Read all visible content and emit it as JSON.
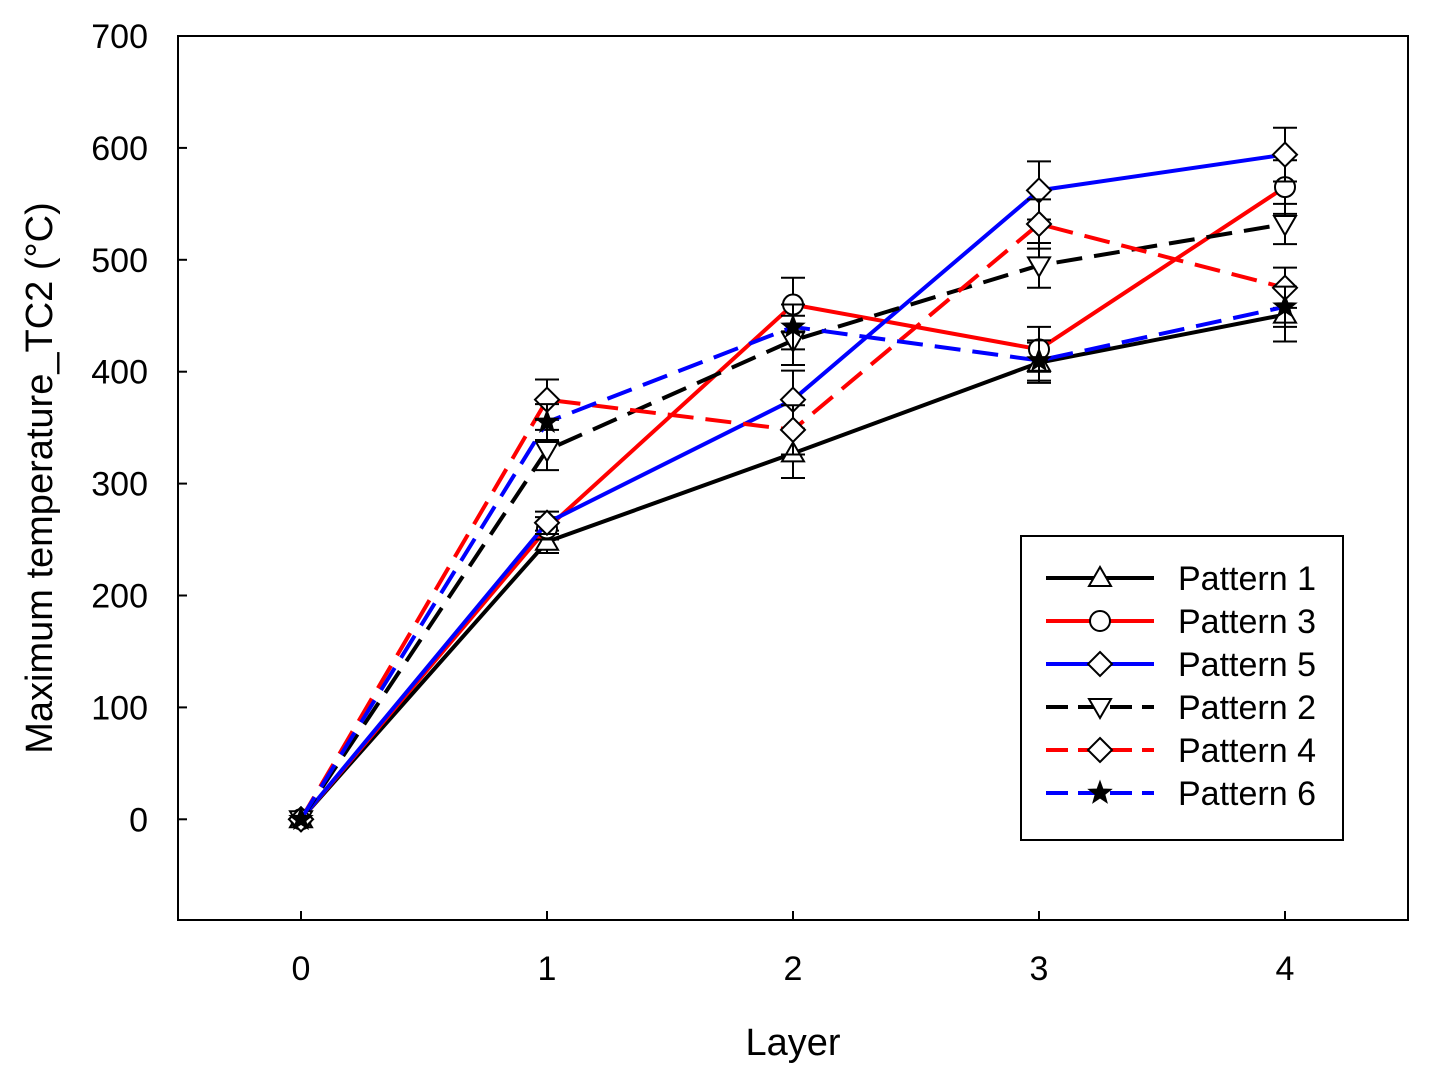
{
  "chart_data": {
    "type": "line",
    "xlabel": "Layer",
    "ylabel": "Maximum temperature_TC2 (°C)",
    "x": [
      0,
      1,
      2,
      3,
      4
    ],
    "xlim": [
      -0.5,
      4.5
    ],
    "ylim": [
      -90,
      700
    ],
    "xticks": [
      0,
      1,
      2,
      3,
      4
    ],
    "yticks": [
      0,
      100,
      200,
      300,
      400,
      500,
      600,
      700
    ],
    "grid": false,
    "legend_position": "lower-right",
    "series": [
      {
        "name": "Pattern 1",
        "color": "#000000",
        "dash": "solid",
        "marker": "triangle-up",
        "values": [
          0,
          248,
          327,
          408,
          451
        ],
        "error": [
          0,
          10,
          22,
          18,
          24
        ]
      },
      {
        "name": "Pattern 3",
        "color": "#ff0000",
        "dash": "solid",
        "marker": "circle",
        "values": [
          0,
          260,
          460,
          420,
          565
        ],
        "error": [
          0,
          10,
          24,
          20,
          24
        ]
      },
      {
        "name": "Pattern 5",
        "color": "#0000ff",
        "dash": "solid",
        "marker": "diamond",
        "values": [
          0,
          265,
          375,
          562,
          594
        ],
        "error": [
          0,
          10,
          26,
          26,
          24
        ]
      },
      {
        "name": "Pattern 2",
        "color": "#000000",
        "dash": "dashed",
        "marker": "triangle-down",
        "values": [
          0,
          330,
          428,
          495,
          532
        ],
        "error": [
          0,
          18,
          22,
          20,
          18
        ]
      },
      {
        "name": "Pattern 4",
        "color": "#ff0000",
        "dash": "dashed",
        "marker": "diamond",
        "values": [
          0,
          375,
          348,
          532,
          475
        ],
        "error": [
          0,
          18,
          22,
          22,
          18
        ]
      },
      {
        "name": "Pattern 6",
        "color": "#0000ff",
        "dash": "dashed",
        "marker": "star",
        "values": [
          0,
          355,
          440,
          410,
          458
        ],
        "error": [
          0,
          16,
          20,
          18,
          18
        ]
      }
    ]
  }
}
